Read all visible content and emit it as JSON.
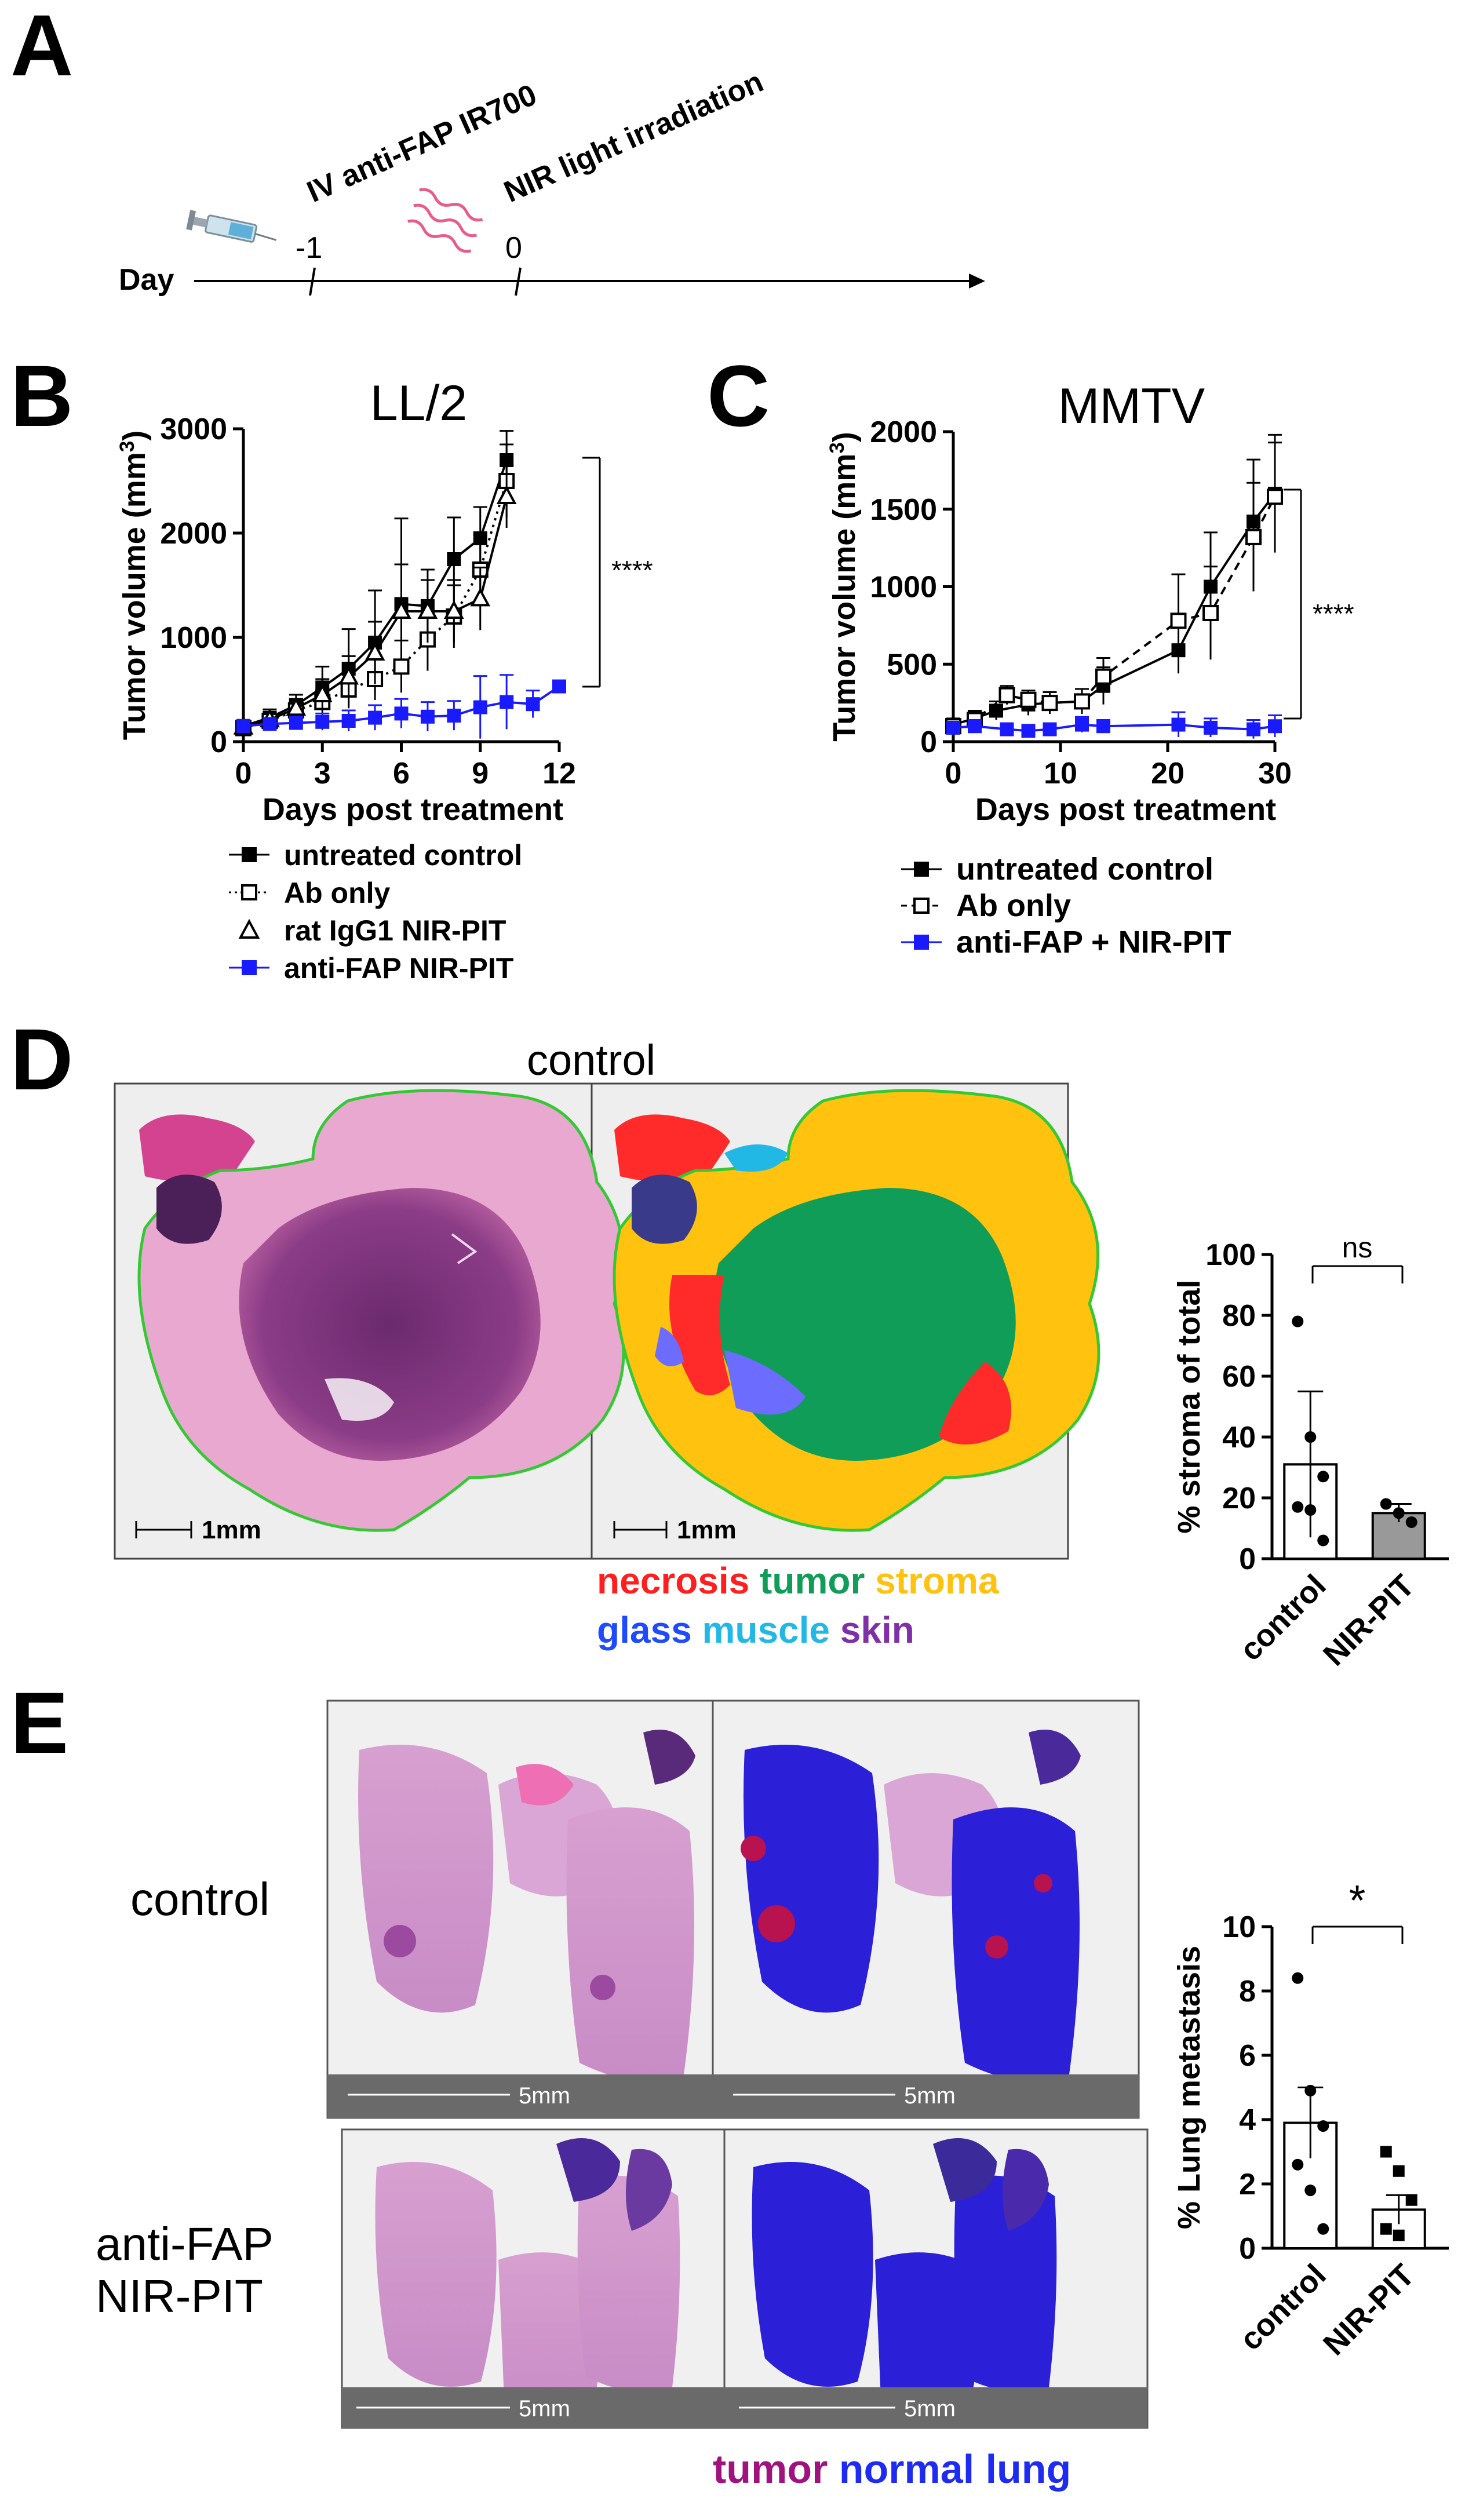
{
  "panels": {
    "A": {
      "label": "A",
      "axis_label": "Day",
      "ticks": [
        "-1",
        "0"
      ],
      "events": [
        "IV anti-FAP IR700",
        "NIR light irradiation"
      ],
      "icons": [
        "syringe-icon",
        "light-waves-icon"
      ]
    },
    "B": {
      "label": "B",
      "significance": "****",
      "legend": [
        "untreated control",
        "Ab only",
        "rat IgG1 NIR-PIT",
        "anti-FAP NIR-PIT"
      ]
    },
    "C": {
      "label": "C",
      "significance": "****",
      "legend": [
        "untreated control",
        "Ab only",
        "anti-FAP + NIR-PIT"
      ]
    },
    "D": {
      "label": "D",
      "image_title": "control",
      "scale_bar": "1mm",
      "classes": [
        {
          "name": "necrosis",
          "color": "#ff1f1f"
        },
        {
          "name": "tumor",
          "color": "#0f9d58"
        },
        {
          "name": "stroma",
          "color": "#ffc20e"
        },
        {
          "name": "glass",
          "color": "#1f4bff"
        },
        {
          "name": "muscle",
          "color": "#22b8e6"
        },
        {
          "name": "skin",
          "color": "#7f2fa8"
        }
      ],
      "significance": "ns"
    },
    "E": {
      "label": "E",
      "row_labels": [
        "control",
        "anti-FAP\nNIR-PIT"
      ],
      "scale_bar": "5mm",
      "classes": [
        {
          "name": "tumor",
          "color": "#a0127e"
        },
        {
          "name": "normal lung",
          "color": "#1d2cf0"
        }
      ],
      "significance": "*"
    }
  },
  "chart_data": [
    {
      "id": "B",
      "type": "line",
      "title": "LL/2",
      "xlabel": "Days post treatment",
      "ylabel": "Tumor volume (mm3)",
      "xlim": [
        0,
        12
      ],
      "ylim": [
        0,
        3000
      ],
      "xticks": [
        0,
        3,
        6,
        9,
        12
      ],
      "yticks": [
        0,
        1000,
        2000,
        3000
      ],
      "series": [
        {
          "name": "untreated control",
          "color": "#000000",
          "marker": "square-filled",
          "dash": "solid",
          "x": [
            0,
            1,
            2,
            3,
            4,
            5,
            6,
            7,
            8,
            9,
            10
          ],
          "y": [
            150,
            230,
            350,
            520,
            700,
            950,
            1320,
            1300,
            1750,
            1950,
            2700
          ],
          "err": [
            60,
            80,
            100,
            200,
            380,
            500,
            820,
            350,
            400,
            300,
            280
          ]
        },
        {
          "name": "Ab only",
          "color": "#000000",
          "marker": "square-open",
          "dash": "dotted",
          "x": [
            0,
            1,
            2,
            3,
            4,
            5,
            6,
            7,
            8,
            9,
            10
          ],
          "y": [
            130,
            200,
            300,
            380,
            500,
            600,
            720,
            980,
            1200,
            1650,
            2500
          ],
          "err": [
            50,
            60,
            90,
            120,
            150,
            200,
            250,
            300,
            300,
            330,
            350
          ]
        },
        {
          "name": "rat IgG1 NIR-PIT",
          "color": "#000000",
          "marker": "triangle-open",
          "dash": "solid",
          "x": [
            0,
            1,
            2,
            3,
            4,
            5,
            6,
            7,
            8,
            9,
            10
          ],
          "y": [
            140,
            210,
            320,
            450,
            620,
            850,
            1250,
            1250,
            1250,
            1370,
            2350
          ],
          "err": [
            50,
            70,
            90,
            150,
            200,
            300,
            450,
            300,
            300,
            300,
            300
          ]
        },
        {
          "name": "anti-FAP NIR-PIT",
          "color": "#1a1aff",
          "marker": "square-filled",
          "dash": "solid",
          "x": [
            0,
            1,
            2,
            3,
            4,
            5,
            6,
            7,
            8,
            9,
            10,
            11,
            12
          ],
          "y": [
            150,
            170,
            180,
            190,
            200,
            230,
            270,
            240,
            250,
            330,
            380,
            360,
            530
          ],
          "err": [
            40,
            50,
            60,
            80,
            100,
            120,
            140,
            140,
            140,
            300,
            260,
            130,
            30
          ]
        }
      ]
    },
    {
      "id": "C",
      "type": "line",
      "title": "MMTV",
      "xlabel": "Days post treatment",
      "ylabel": "Tumor volume (mm3)",
      "xlim": [
        0,
        30
      ],
      "ylim": [
        0,
        2000
      ],
      "xticks": [
        0,
        10,
        20,
        30
      ],
      "yticks": [
        0,
        500,
        1000,
        1500,
        2000
      ],
      "series": [
        {
          "name": "untreated control",
          "color": "#000000",
          "marker": "square-filled",
          "dash": "solid",
          "x": [
            0,
            2,
            4,
            7,
            9,
            12,
            14,
            21,
            24,
            28,
            30
          ],
          "y": [
            110,
            150,
            200,
            240,
            250,
            260,
            360,
            590,
            1000,
            1420,
            1600
          ],
          "err": [
            40,
            50,
            60,
            70,
            70,
            80,
            120,
            150,
            350,
            400,
            380
          ]
        },
        {
          "name": "Ab only",
          "color": "#000000",
          "marker": "square-open",
          "dash": "dashed",
          "x": [
            0,
            2,
            5,
            7,
            9,
            12,
            14,
            21,
            24,
            28,
            30
          ],
          "y": [
            100,
            140,
            300,
            270,
            250,
            260,
            420,
            780,
            830,
            1320,
            1580
          ],
          "err": [
            40,
            50,
            60,
            60,
            70,
            80,
            120,
            300,
            300,
            350,
            350
          ]
        },
        {
          "name": "anti-FAP + NIR-PIT",
          "color": "#1a1aff",
          "marker": "square-filled",
          "dash": "solid",
          "x": [
            0,
            2,
            5,
            7,
            9,
            12,
            14,
            21,
            24,
            28,
            30
          ],
          "y": [
            90,
            100,
            80,
            70,
            80,
            110,
            100,
            110,
            90,
            80,
            100
          ],
          "err": [
            30,
            40,
            30,
            30,
            30,
            50,
            40,
            80,
            60,
            60,
            70
          ]
        }
      ]
    },
    {
      "id": "D",
      "type": "bar",
      "categories": [
        "control",
        "NIR-PIT"
      ],
      "values": [
        31,
        15
      ],
      "err": [
        24,
        3
      ],
      "points": [
        [
          78,
          40,
          27,
          17,
          16,
          6
        ],
        [
          18,
          15,
          12
        ]
      ],
      "fills": [
        "#ffffff",
        "#999999"
      ],
      "ylabel": "% stroma of total",
      "ylim": [
        0,
        100
      ],
      "yticks": [
        0,
        20,
        40,
        60,
        80,
        100
      ]
    },
    {
      "id": "E",
      "type": "bar",
      "categories": [
        "control",
        "NIR-PIT"
      ],
      "values": [
        3.9,
        1.2
      ],
      "err": [
        1.1,
        0.45
      ],
      "points": [
        [
          8.4,
          4.9,
          3.8,
          2.6,
          1.8,
          0.6
        ],
        [
          3.0,
          2.4,
          1.5,
          0.6,
          0.4
        ]
      ],
      "fills": [
        "#ffffff",
        "#ffffff"
      ],
      "ylabel": "% Lung metastasis",
      "ylim": [
        0,
        10
      ],
      "yticks": [
        0,
        2,
        4,
        6,
        8,
        10
      ]
    }
  ]
}
